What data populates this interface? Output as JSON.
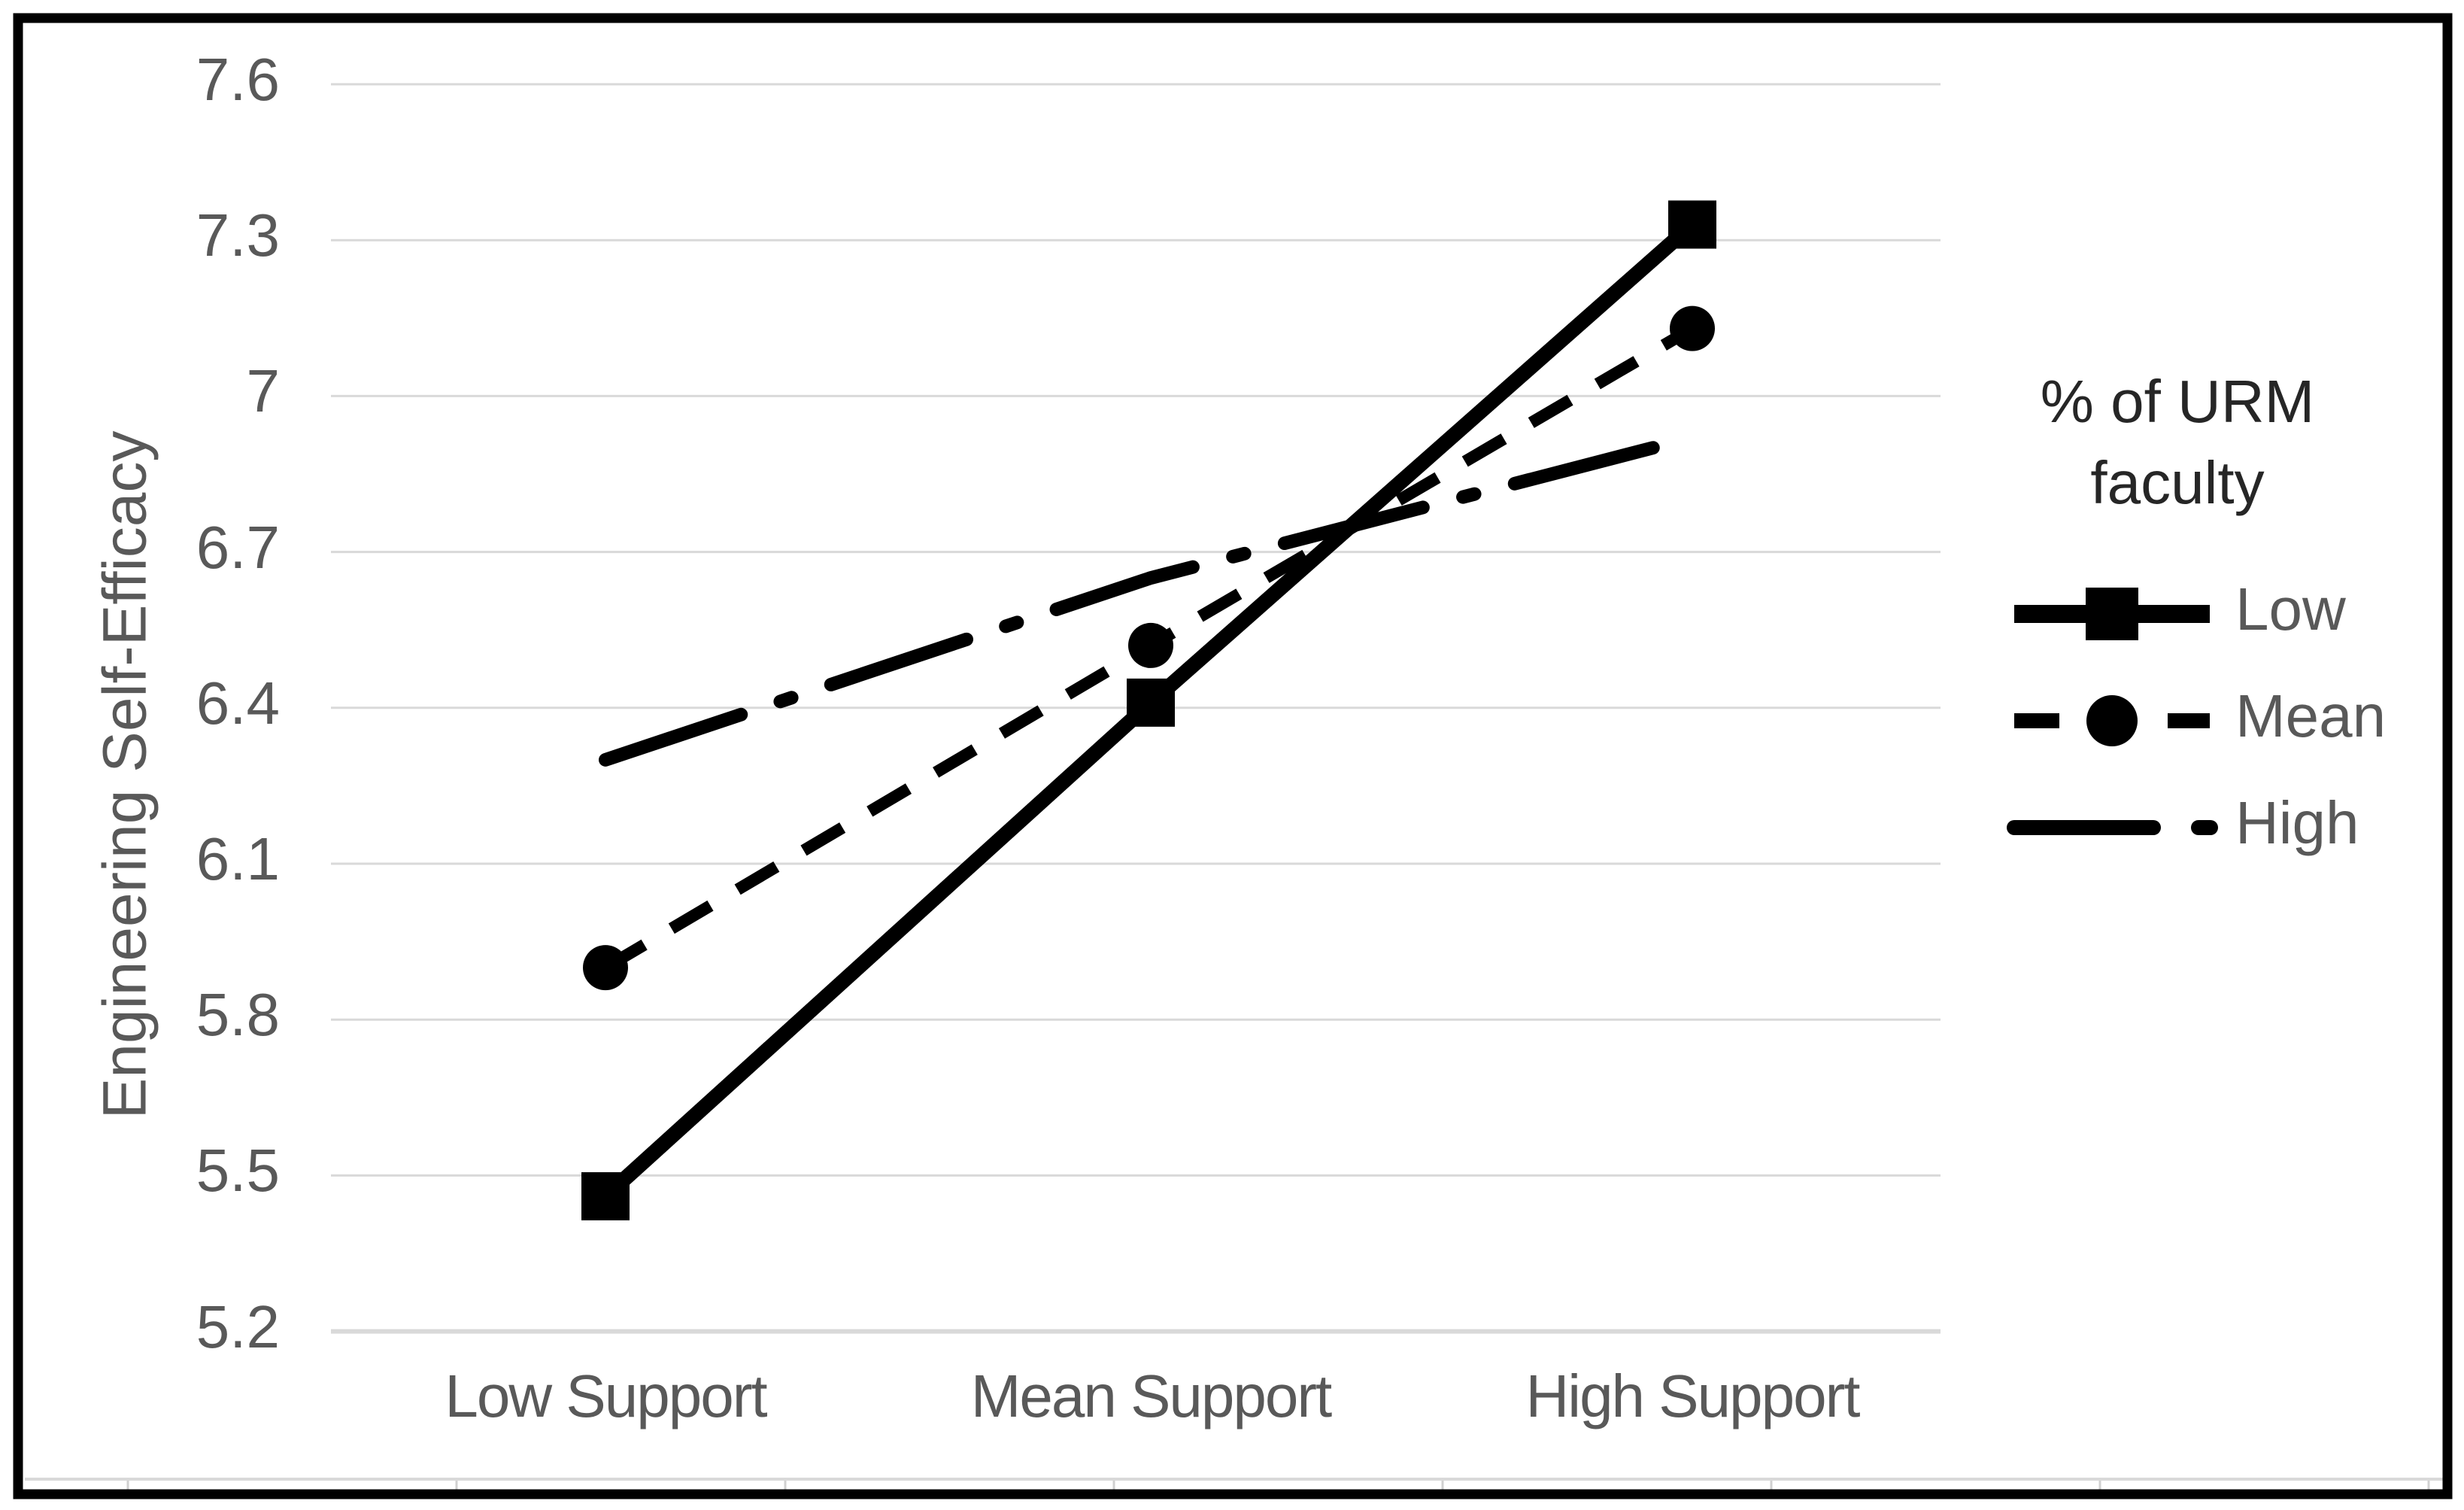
{
  "chart_data": {
    "type": "line",
    "title": "",
    "categories": [
      "Low Support",
      "Mean Support",
      "High Support"
    ],
    "series": [
      {
        "name": "Low",
        "values": [
          5.46,
          6.41,
          7.33
        ],
        "line_style": "solid",
        "marker": "square"
      },
      {
        "name": "Mean",
        "values": [
          5.9,
          6.52,
          7.13
        ],
        "line_style": "dashed",
        "marker": "circle"
      },
      {
        "name": "High",
        "values": [
          6.3,
          6.65,
          6.92
        ],
        "line_style": "dash-dot",
        "marker": "none"
      }
    ],
    "xlabel": "",
    "ylabel": "Engineering Self-Efficacy",
    "ylim": [
      5.2,
      7.6
    ],
    "y_tick_step": 0.3,
    "y_ticks": [
      "7.6",
      "7.3",
      "7",
      "6.7",
      "6.4",
      "6.1",
      "5.8",
      "5.5",
      "5.2"
    ],
    "grid": "horizontal",
    "legend_position": "right",
    "legend_title": [
      "% of URM",
      "faculty"
    ],
    "line_color": "#000000",
    "gridline_color": "#d9d9d9",
    "text_color": "#595959",
    "frame_color": "#000000"
  }
}
